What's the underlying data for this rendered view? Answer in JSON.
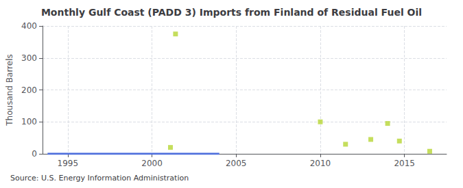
{
  "chart_data": {
    "type": "scatter",
    "title": "Monthly Gulf Coast (PADD 3) Imports from Finland of Residual Fuel Oil",
    "ylabel": "Thousand Barrels",
    "annotations": [
      "Source: U.S. Energy Information Administration"
    ],
    "xlim": [
      1993.5,
      2017.5
    ],
    "ylim": [
      0,
      400
    ],
    "xticks": [
      1995,
      2000,
      2005,
      2010,
      2015
    ],
    "yticks": [
      0,
      100,
      200,
      300,
      400
    ],
    "grid": true,
    "series": [
      {
        "type": "line",
        "line_style": "solid",
        "x": [
          1993.8,
          2004.0
        ],
        "values": [
          0,
          0
        ]
      },
      {
        "type": "scatter",
        "marker": "square",
        "x": [
          2001.1,
          2001.4,
          2010.0,
          2011.5,
          2013.0,
          2014.0,
          2014.7,
          2016.5
        ],
        "values": [
          20,
          375,
          100,
          30,
          45,
          95,
          40,
          8
        ]
      }
    ]
  }
}
